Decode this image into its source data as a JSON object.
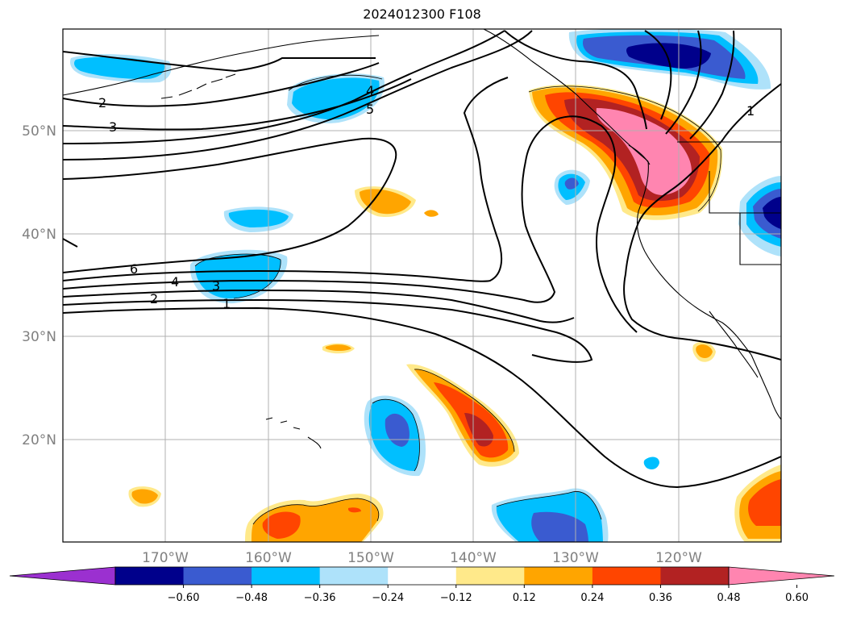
{
  "title": "2024012300 F108",
  "map": {
    "lat_labels": [
      "50°N",
      "40°N",
      "30°N",
      "20°N"
    ],
    "lon_labels": [
      "170°W",
      "160°W",
      "150°W",
      "140°W",
      "130°W",
      "120°W"
    ],
    "gridlines": true,
    "contour_labels": [
      "2",
      "3",
      "4",
      "5",
      "6",
      "4",
      "3",
      "2",
      "1",
      "1"
    ]
  },
  "colorbar": {
    "ticks": [
      "−0.60",
      "−0.48",
      "−0.36",
      "−0.24",
      "−0.12",
      "0.12",
      "0.24",
      "0.36",
      "0.48",
      "0.60"
    ],
    "colors": [
      "#9b30d0",
      "#00008b",
      "#3a5bd0",
      "#00bfff",
      "#aee2fa",
      "#ffffff",
      "#ffe98a",
      "#ffa500",
      "#ff4500",
      "#b22222",
      "#ff85b0"
    ],
    "extend": "both"
  }
}
